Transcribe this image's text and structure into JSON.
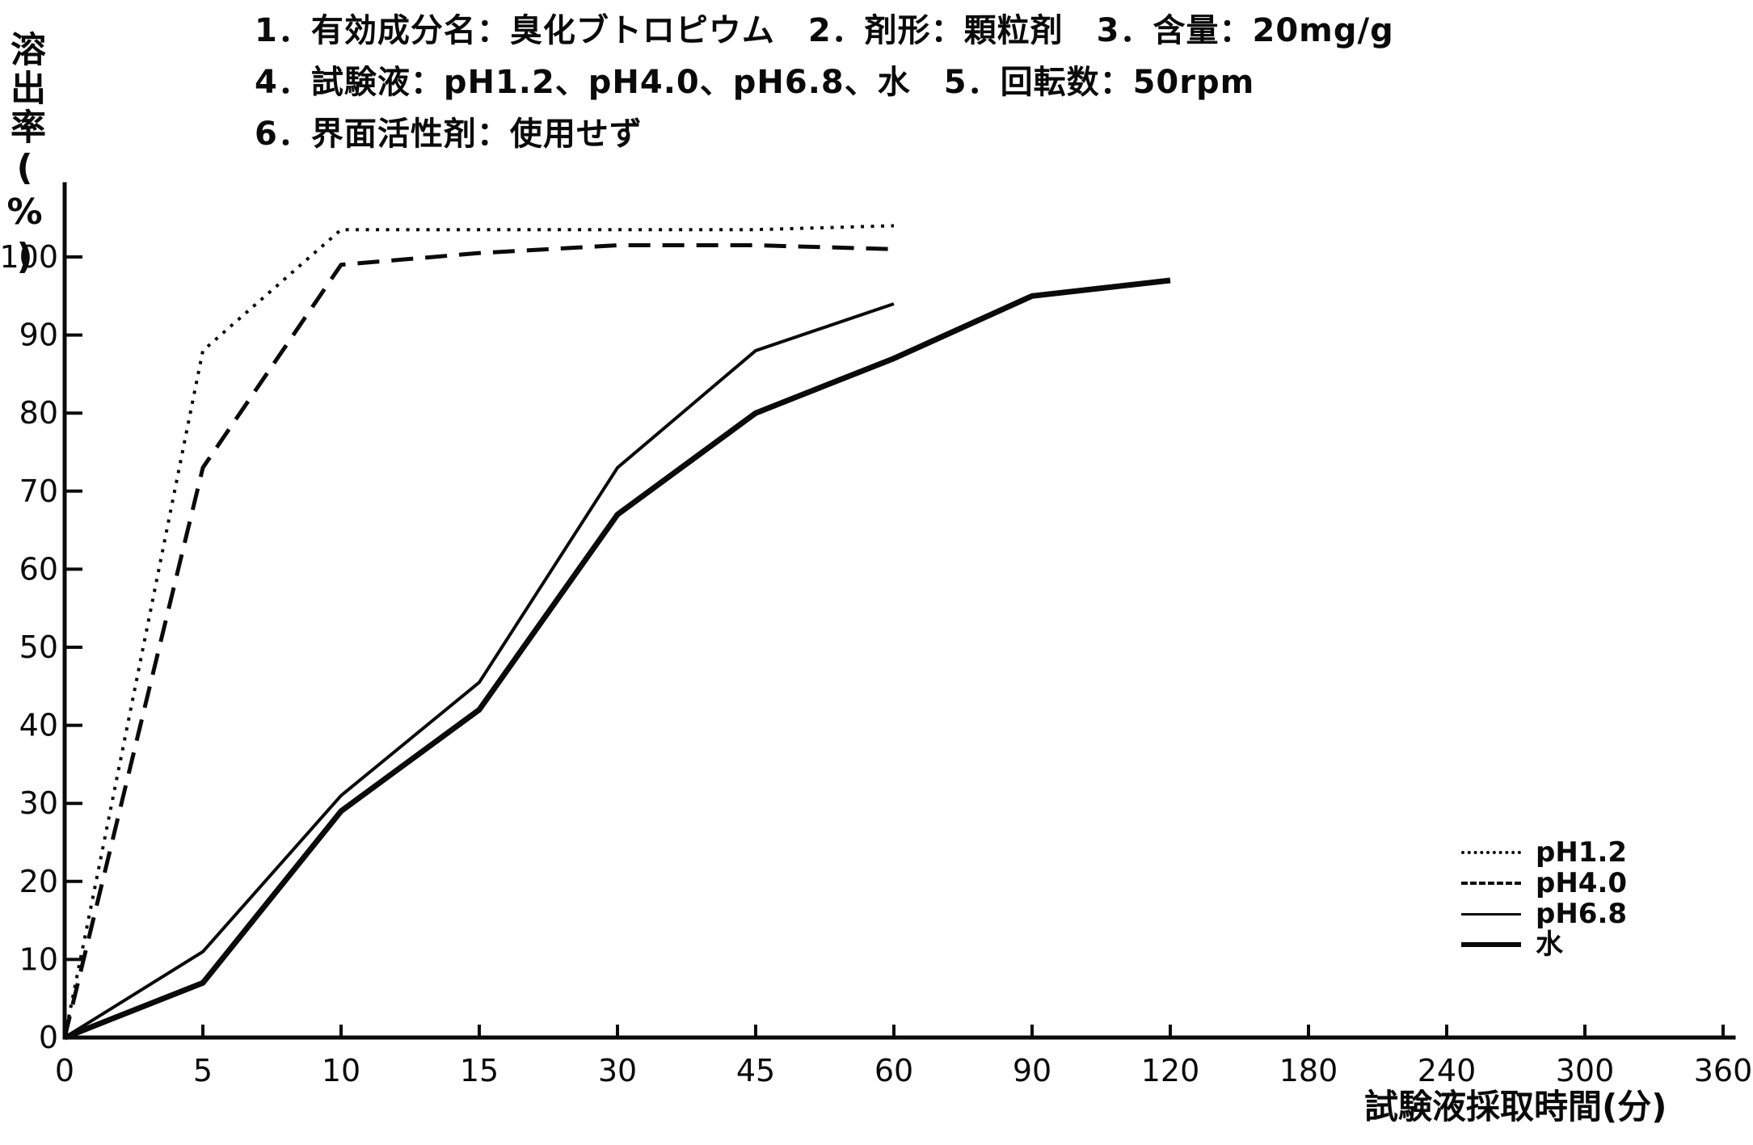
{
  "colors": {
    "ink": "#0a0a0a",
    "paper": "#ffffff"
  },
  "header": {
    "line1": "1．有効成分名：臭化ブトロピウム　2．剤形：顆粒剤　3．含量：20mg/g",
    "line2": "4．試験液：pH1.2、pH4.0、pH6.8、水　5．回転数：50rpm",
    "line3": "6．界面活性剤：使用せず"
  },
  "chart_data": {
    "type": "line",
    "title": "",
    "xlabel": "試験液採取時間(分)",
    "ylabel": "溶出率(%)",
    "categories": [
      0,
      5,
      10,
      15,
      30,
      45,
      60,
      90,
      120,
      180,
      240,
      300,
      360
    ],
    "categories_note": "equally-spaced categorical time axis, minutes",
    "ylim": [
      0,
      100
    ],
    "ytick_step": 10,
    "grid": false,
    "legend_position": "right-middle",
    "series": [
      {
        "name": "pH1.2",
        "style": "dotted",
        "values": [
          0,
          88,
          103.5,
          103.5,
          103.5,
          103.5,
          104
        ]
      },
      {
        "name": "pH4.0",
        "style": "dashed",
        "values": [
          0,
          73,
          99,
          100.5,
          101.5,
          101.5,
          101
        ]
      },
      {
        "name": "pH6.8",
        "style": "thin-solid",
        "values": [
          0,
          11,
          31,
          45.5,
          73,
          88,
          94
        ]
      },
      {
        "name": "水",
        "style": "thick-solid",
        "values": [
          0,
          7,
          29,
          42,
          67,
          80,
          87,
          95,
          97
        ]
      }
    ]
  }
}
